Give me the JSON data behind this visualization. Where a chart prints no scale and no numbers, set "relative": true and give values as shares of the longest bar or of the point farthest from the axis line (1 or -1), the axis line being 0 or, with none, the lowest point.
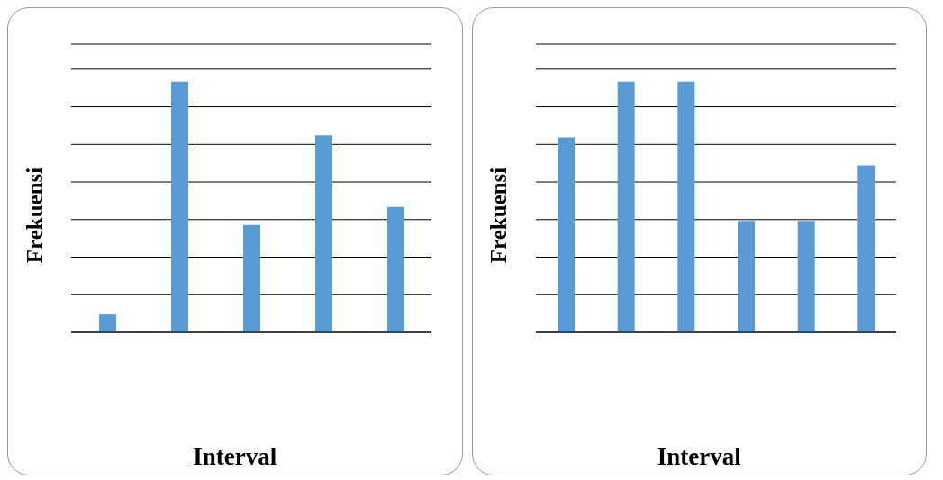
{
  "chart_data": [
    {
      "type": "bar",
      "xlabel": "Interval",
      "ylabel": "Frekuensi",
      "relative": true,
      "grid": "y",
      "legend": false,
      "categories": [
        null,
        null,
        null,
        null,
        null
      ],
      "series": [
        {
          "color": "#5b9bd5",
          "values": [
            0.0714,
            1,
            0.4286,
            0.7857,
            0.5
          ]
        }
      ]
    },
    {
      "type": "bar",
      "xlabel": "Interval",
      "ylabel": "Frekuensi",
      "relative": true,
      "grid": "y",
      "legend": false,
      "categories": [
        null,
        null,
        null,
        null,
        null,
        null
      ],
      "series": [
        {
          "color": "#5b9bd5",
          "values": [
            0.7778,
            1,
            1,
            0.4444,
            0.4444,
            0.6667
          ]
        }
      ]
    }
  ]
}
